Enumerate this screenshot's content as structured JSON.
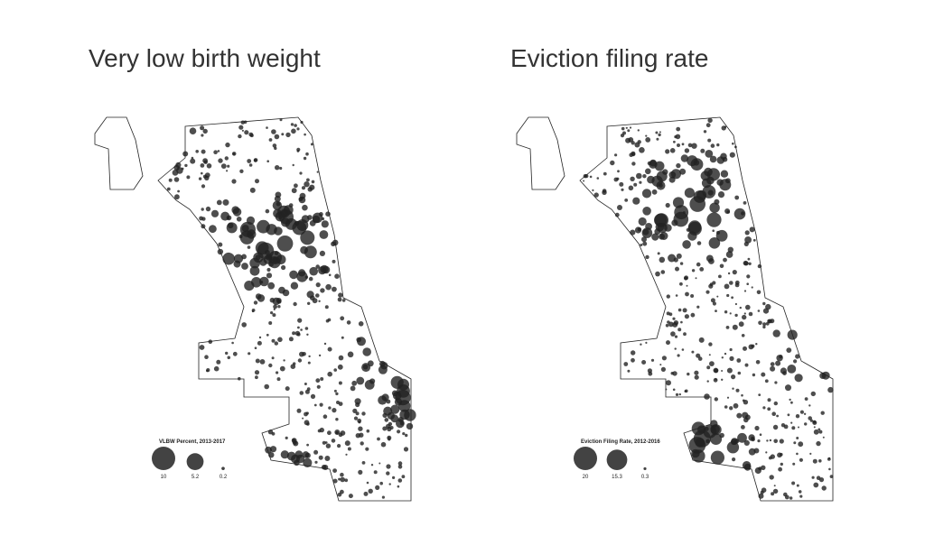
{
  "maps": [
    {
      "title": "Very low birth weight",
      "legend_title": "VLBW Percent, 2013-2017",
      "legend": [
        10,
        5.2,
        0.2
      ]
    },
    {
      "title": "Eviction filing rate",
      "legend_title": "Eviction Filing Rate, 2012-2016",
      "legend": [
        20,
        15.3,
        0.3
      ]
    }
  ]
}
